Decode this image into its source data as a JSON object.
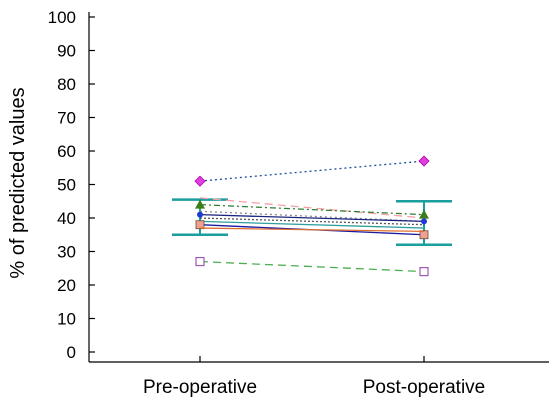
{
  "chart_data": {
    "type": "line",
    "title": "",
    "xlabel": "",
    "ylabel": "% of predicted values",
    "categories": [
      "Pre-operative",
      "Post-operative"
    ],
    "ylim": [
      0,
      100
    ],
    "yticks": [
      0,
      10,
      20,
      30,
      40,
      50,
      60,
      70,
      80,
      90,
      100
    ],
    "grid": false,
    "series": [
      {
        "values": [
          51,
          57
        ],
        "color": "#1f4e9c",
        "dash": "2,3",
        "marker": "diamond",
        "marker_color": "#e040e0"
      },
      {
        "values": [
          46,
          40
        ],
        "color": "#f4a0a8",
        "dash": "8,5",
        "marker": "none",
        "marker_color": "#f4a0a8"
      },
      {
        "values": [
          44,
          41
        ],
        "color": "#2e7d32",
        "dash": "6,3,2,3",
        "marker": "triangle",
        "marker_color": "#3a7d1a"
      },
      {
        "values": [
          42,
          39
        ],
        "color": "#888888",
        "dash": "2,3",
        "marker": "none",
        "marker_color": "#888888"
      },
      {
        "values": [
          41,
          39
        ],
        "color": "#1a237e",
        "dash": "",
        "marker": "circle",
        "marker_color": "#1e3ad6"
      },
      {
        "values": [
          40,
          38
        ],
        "color": "#555555",
        "dash": "2,2",
        "marker": "none",
        "marker_color": "#555555"
      },
      {
        "values": [
          39,
          37
        ],
        "color": "#2f9e9e",
        "dash": "",
        "marker": "none",
        "marker_color": "#2f9e9e"
      },
      {
        "values": [
          38,
          35
        ],
        "color": "#1a1aa0",
        "dash": "",
        "marker": "square",
        "marker_color": "#f0a090"
      },
      {
        "values": [
          37,
          36
        ],
        "color": "#e07030",
        "dash": "",
        "marker": "none",
        "marker_color": "#e07030"
      },
      {
        "values": [
          27,
          24
        ],
        "color": "#4caf50",
        "dash": "8,5",
        "marker": "square-open",
        "marker_color": "#9b59b6"
      }
    ],
    "error_bars": [
      {
        "category": "Pre-operative",
        "upper": 45.5,
        "lower": 35,
        "color": "#1a9e9e"
      },
      {
        "category": "Post-operative",
        "upper": 45,
        "lower": 32,
        "color": "#1a9e9e"
      }
    ]
  }
}
